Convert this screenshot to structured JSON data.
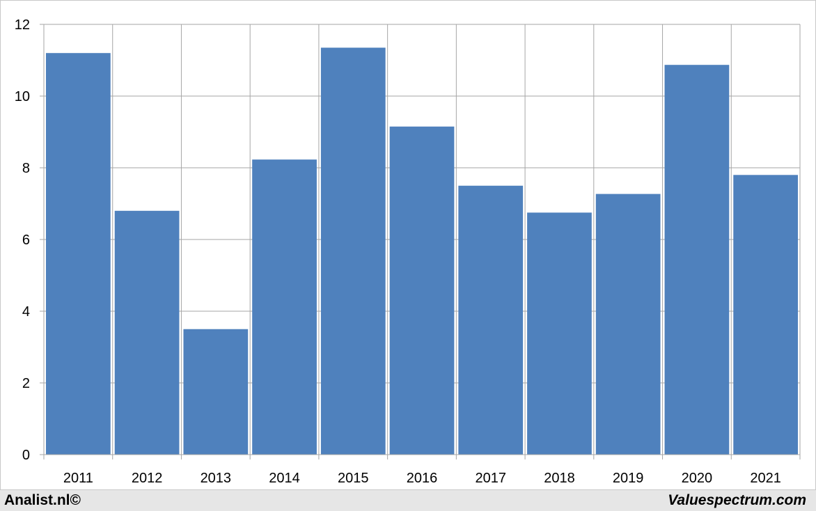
{
  "chart_data": {
    "type": "bar",
    "categories": [
      "2011",
      "2012",
      "2013",
      "2014",
      "2015",
      "2016",
      "2017",
      "2018",
      "2019",
      "2020",
      "2021"
    ],
    "values": [
      11.2,
      6.8,
      3.5,
      8.23,
      11.35,
      9.15,
      7.5,
      6.75,
      7.27,
      10.87,
      7.8
    ],
    "title": "",
    "xlabel": "",
    "ylabel": "",
    "ylim": [
      0,
      12
    ],
    "yticks": [
      "0",
      "2",
      "4",
      "6",
      "8",
      "10",
      "12"
    ],
    "grid": true,
    "legend": "none",
    "bar_color": "#4f81bd",
    "grid_color": "#a6a6a6"
  },
  "footer": {
    "left_text": "Analist.nl©",
    "right_text": "Valuespectrum.com",
    "background": "#e6e6e6"
  }
}
